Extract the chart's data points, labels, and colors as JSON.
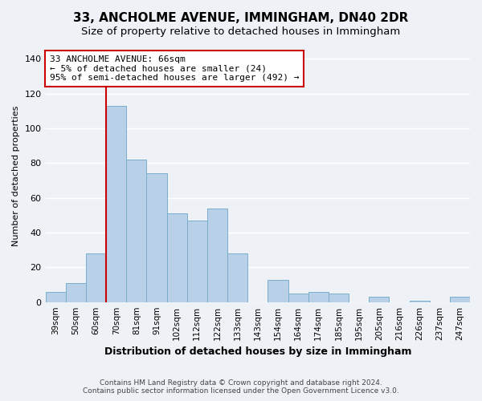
{
  "title": "33, ANCHOLME AVENUE, IMMINGHAM, DN40 2DR",
  "subtitle": "Size of property relative to detached houses in Immingham",
  "xlabel": "Distribution of detached houses by size in Immingham",
  "ylabel": "Number of detached properties",
  "categories": [
    "39sqm",
    "50sqm",
    "60sqm",
    "70sqm",
    "81sqm",
    "91sqm",
    "102sqm",
    "112sqm",
    "122sqm",
    "133sqm",
    "143sqm",
    "154sqm",
    "164sqm",
    "174sqm",
    "185sqm",
    "195sqm",
    "205sqm",
    "216sqm",
    "226sqm",
    "237sqm",
    "247sqm"
  ],
  "values": [
    6,
    11,
    28,
    113,
    82,
    74,
    51,
    47,
    54,
    28,
    0,
    13,
    5,
    6,
    5,
    0,
    3,
    0,
    1,
    0,
    3
  ],
  "bar_color": "#b8d0e8",
  "bar_edge_color": "#7aaeca",
  "reference_line_color": "#cc0000",
  "annotation_line1": "33 ANCHOLME AVENUE: 66sqm",
  "annotation_line2": "← 5% of detached houses are smaller (24)",
  "annotation_line3": "95% of semi-detached houses are larger (492) →",
  "annotation_box_edge_color": "#cc0000",
  "annotation_box_face_color": "#ffffff",
  "ylim": [
    0,
    145
  ],
  "yticks": [
    0,
    20,
    40,
    60,
    80,
    100,
    120,
    140
  ],
  "footer_line1": "Contains HM Land Registry data © Crown copyright and database right 2024.",
  "footer_line2": "Contains public sector information licensed under the Open Government Licence v3.0.",
  "title_fontsize": 11,
  "subtitle_fontsize": 9.5,
  "background_color": "#eef2f7"
}
